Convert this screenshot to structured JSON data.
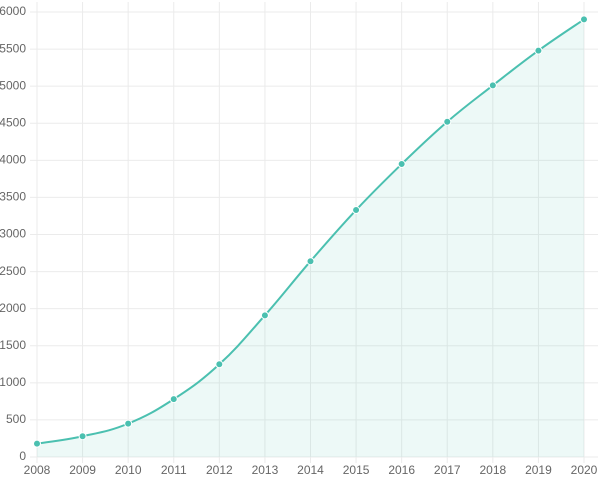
{
  "chart_data": {
    "type": "line",
    "categories": [
      "2008",
      "2009",
      "2010",
      "2011",
      "2012",
      "2013",
      "2014",
      "2015",
      "2016",
      "2017",
      "2018",
      "2019",
      "2020"
    ],
    "series": [
      {
        "color": "#4bc0b0",
        "values": [
          180,
          280,
          450,
          780,
          1250,
          1910,
          2640,
          3330,
          3950,
          4520,
          5010,
          5480,
          5900
        ]
      }
    ],
    "fill": true,
    "ylim": [
      0,
      6000
    ],
    "yticks": [
      0,
      500,
      1000,
      1500,
      2000,
      2500,
      3000,
      3500,
      4000,
      4500,
      5000,
      5500,
      6000
    ],
    "grid": true
  }
}
